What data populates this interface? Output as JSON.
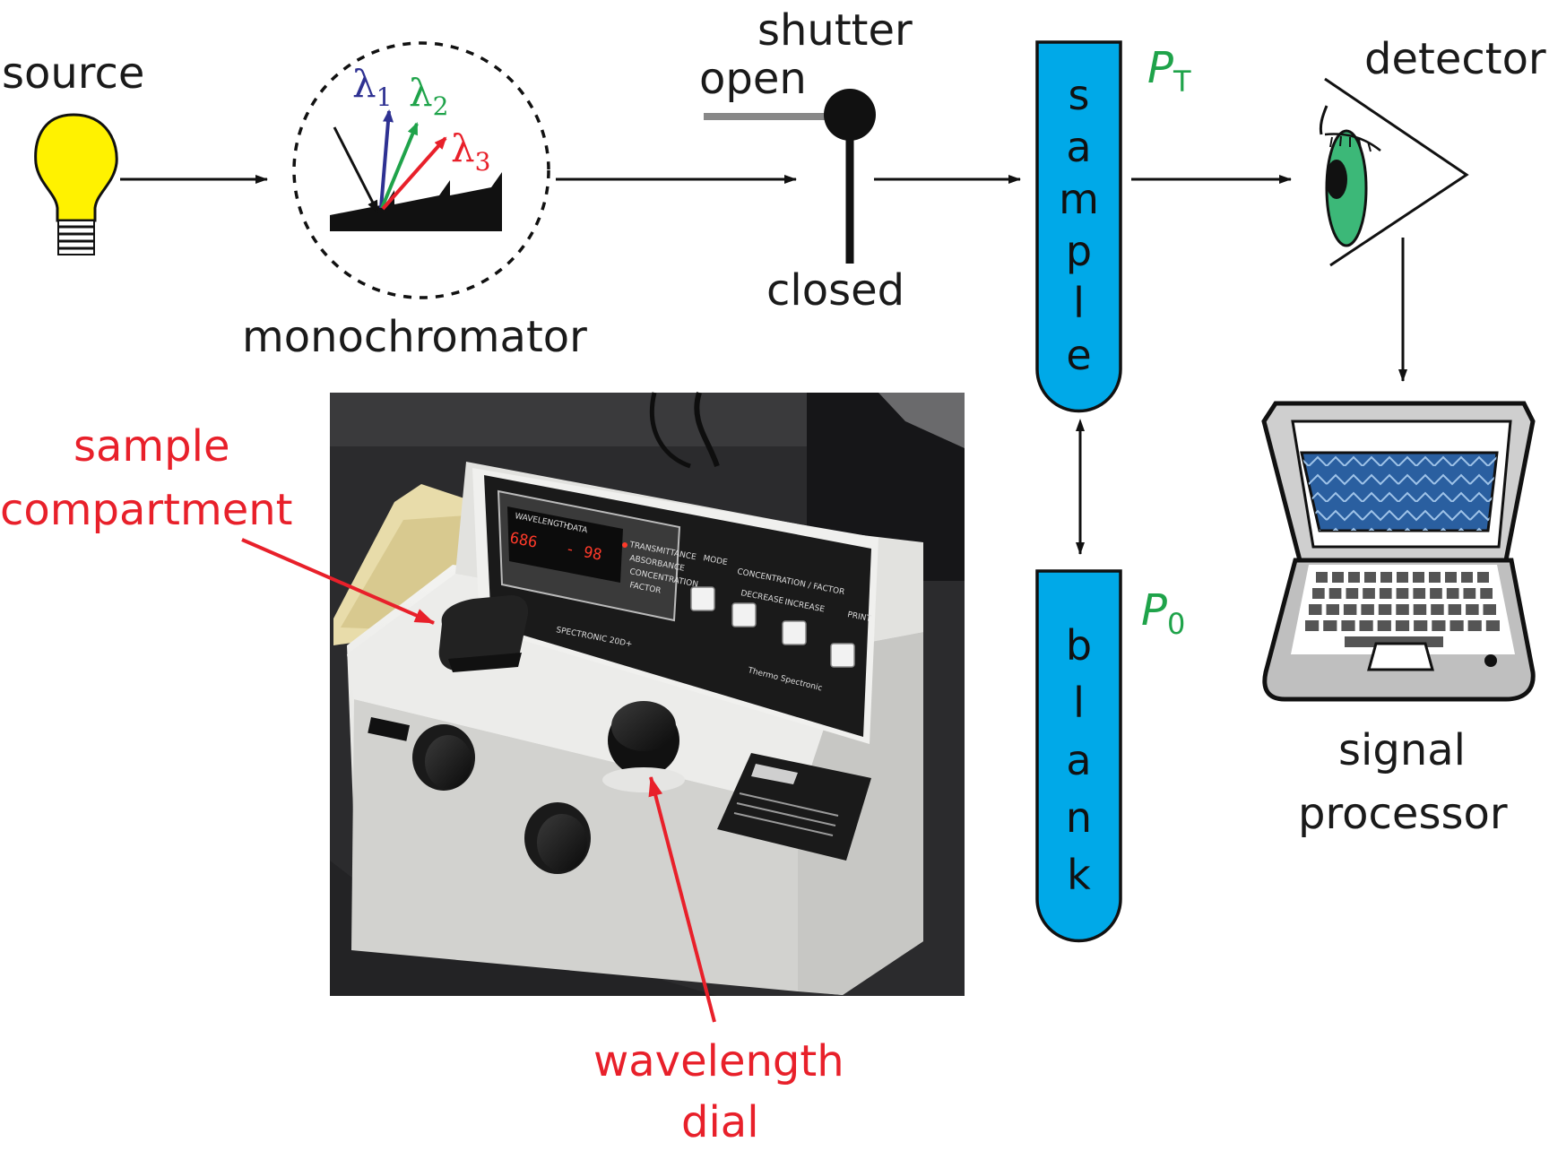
{
  "labels": {
    "source": "source",
    "monochromator": "monochromator",
    "shutter": "shutter",
    "open": "open",
    "closed": "closed",
    "detector": "detector",
    "signal_processor_line1": "signal",
    "signal_processor_line2": "processor",
    "sample_compartment_line1": "sample",
    "sample_compartment_line2": "compartment",
    "wavelength_dial_line1": "wavelength",
    "wavelength_dial_line2": "dial"
  },
  "wavelengths": [
    {
      "symbol": "λ",
      "sub": "1",
      "color": "#2e3192"
    },
    {
      "symbol": "λ",
      "sub": "2",
      "color": "#1fa34a"
    },
    {
      "symbol": "λ",
      "sub": "3",
      "color": "#e8202a"
    }
  ],
  "tubes": {
    "sample_letters": [
      "s",
      "a",
      "m",
      "p",
      "l",
      "e"
    ],
    "blank_letters": [
      "b",
      "l",
      "a",
      "n",
      "k"
    ],
    "fill_color": "#00a9e8"
  },
  "power": {
    "transmitted": {
      "symbol": "P",
      "sub": "T"
    },
    "incident": {
      "symbol": "P",
      "sub": "0"
    }
  },
  "instrument": {
    "display_wavelength": "686",
    "display_reading": "- 98",
    "indicator_labels": [
      "TRANSMITTANCE",
      "ABSORBANCE",
      "CONCENTRATION",
      "FACTOR"
    ],
    "display_header": [
      "WAVELENGTH",
      "DATA"
    ],
    "mode_label": "MODE",
    "conc_factor_label": "CONCENTRATION / FACTOR",
    "decrease_label": "DECREASE",
    "increase_label": "INCREASE",
    "print_label": "PRINT",
    "model_name": "SPECTRONIC 20D+",
    "brand_name": "Thermo Spectronic"
  },
  "colors": {
    "label_red": "#e8202a",
    "label_green": "#1fa34a",
    "bulb_yellow": "#fff200",
    "eye_green": "#3cb878",
    "screen_blue": "#2a5fa0"
  }
}
